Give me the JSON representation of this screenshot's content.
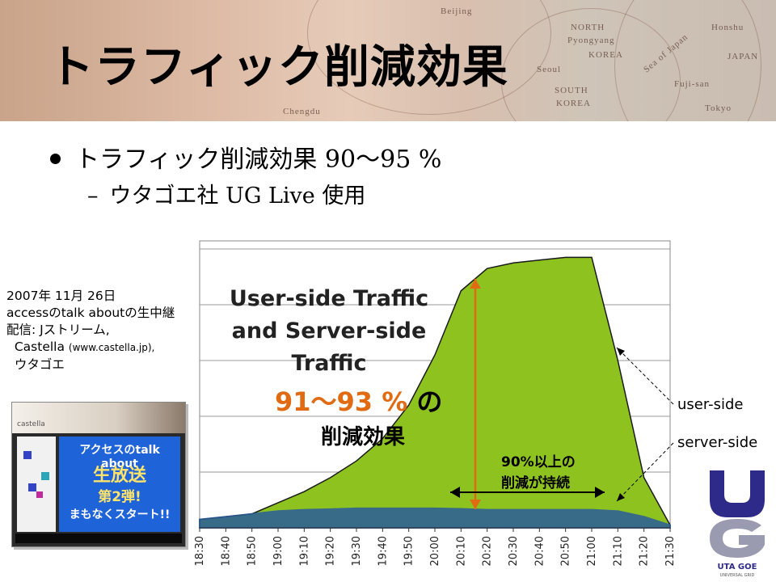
{
  "slide": {
    "title": "トラフィック削減効果",
    "bullet1": "トラフィック削減効果 90〜95 %",
    "bullet2": "ウタゴエ社 UG Live 使用",
    "bullet2_dash": "–",
    "caption_lines": [
      "2007年 11月 26日",
      "accessのtalk aboutの生中継",
      "配信: Jストリーム,"
    ],
    "caption_castella": "Castella",
    "caption_url": "(www.castella.jp),",
    "caption_last": "ウタゴエ"
  },
  "banner_map_labels": [
    "Beijing",
    "NORTH",
    "Pyongyang",
    "KOREA",
    "Seoul",
    "SOUTH",
    "KOREA",
    "Sea of Japan",
    "JAPAN",
    "Honshu",
    "Tokyo",
    "Fuji-san",
    "Chengdu"
  ],
  "thumbnail": {
    "logo": "castella",
    "line1": "アクセスのtalk about",
    "line2": "生放送",
    "line3": "第2弾!",
    "line4": "まもなくスタート!!"
  },
  "chart_data": {
    "type": "area",
    "title": "User-side Traffic and Server-side Traffic",
    "categories": [
      "18:30",
      "18:40",
      "18:50",
      "19:00",
      "19:10",
      "19:20",
      "19:30",
      "19:40",
      "19:50",
      "20:00",
      "20:10",
      "20:20",
      "20:30",
      "20:40",
      "20:50",
      "21:00",
      "21:10",
      "21:20",
      "21:30"
    ],
    "ylim": [
      0,
      100
    ],
    "grid": true,
    "series": [
      {
        "name": "user-side",
        "color": "#8dc21f",
        "values": [
          3,
          4,
          5,
          9,
          13,
          18,
          24,
          32,
          44,
          62,
          85,
          93,
          95,
          96,
          97,
          97,
          60,
          18,
          1
        ]
      },
      {
        "name": "server-side",
        "color": "#2a5d9a",
        "values": [
          3,
          4,
          5,
          6,
          6.5,
          6.7,
          7,
          7,
          7,
          7,
          6.8,
          6.5,
          6.5,
          6.5,
          6.5,
          6.5,
          6,
          4,
          1
        ]
      }
    ],
    "annotations": {
      "reduction_pct": "91〜93 %",
      "reduction_particle": "の",
      "reduction_label": "削減効果",
      "sustain_line1": "90%以上の",
      "sustain_line2": "削減が持続",
      "user_label": "user-side",
      "server_label": "server-side"
    }
  },
  "logo": {
    "letters": "UG",
    "name": "UTA GOE",
    "sub": "UNIVERSAL GRID"
  }
}
